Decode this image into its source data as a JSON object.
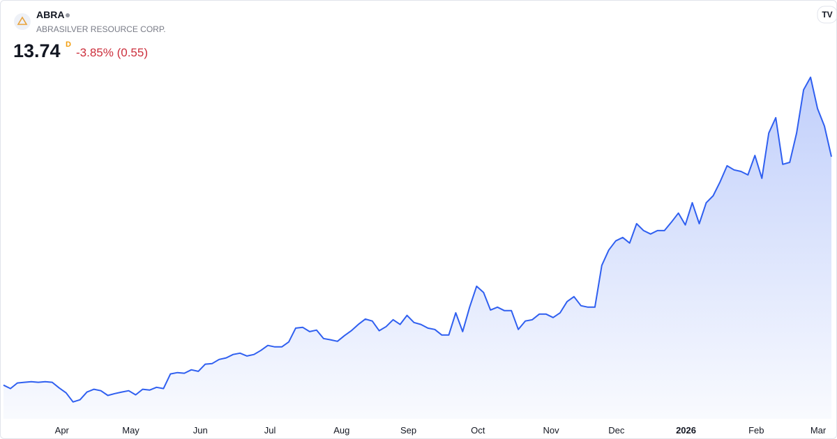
{
  "header": {
    "ticker": "ABRA",
    "company": "ABRASILVER RESOURCE CORP.",
    "price": "13.74",
    "interval": "D",
    "change": "-3.85% (0.55)"
  },
  "chart_data": {
    "type": "area",
    "color": "#2f5ff0",
    "values": [
      3.16,
      3.0,
      3.26,
      3.29,
      3.32,
      3.29,
      3.32,
      3.29,
      3.03,
      2.8,
      2.38,
      2.48,
      2.84,
      2.97,
      2.9,
      2.68,
      2.77,
      2.84,
      2.9,
      2.71,
      2.97,
      2.93,
      3.06,
      3.0,
      3.68,
      3.74,
      3.71,
      3.87,
      3.8,
      4.13,
      4.16,
      4.35,
      4.42,
      4.58,
      4.64,
      4.51,
      4.58,
      4.77,
      5.0,
      4.93,
      4.93,
      5.16,
      5.8,
      5.84,
      5.64,
      5.71,
      5.32,
      5.26,
      5.19,
      5.45,
      5.68,
      5.97,
      6.22,
      6.13,
      5.68,
      5.87,
      6.19,
      5.97,
      6.39,
      6.06,
      5.97,
      5.8,
      5.74,
      5.48,
      5.48,
      6.51,
      5.64,
      6.77,
      7.74,
      7.45,
      6.64,
      6.77,
      6.61,
      6.61,
      5.74,
      6.13,
      6.19,
      6.45,
      6.45,
      6.29,
      6.51,
      7.03,
      7.26,
      6.84,
      6.77,
      6.77,
      8.71,
      9.42,
      9.84,
      10.0,
      9.74,
      10.64,
      10.32,
      10.16,
      10.32,
      10.32,
      10.71,
      11.13,
      10.58,
      11.61,
      10.64,
      11.61,
      11.93,
      12.58,
      13.32,
      13.13,
      13.06,
      12.9,
      13.8,
      12.74,
      14.84,
      15.55,
      13.39,
      13.48,
      14.84,
      16.84,
      17.42,
      15.97,
      15.16,
      13.74
    ],
    "ylim": [
      1.6,
      19.0
    ],
    "xticks": [
      {
        "value": 8.4,
        "label": "Apr"
      },
      {
        "value": 18.3,
        "label": "May"
      },
      {
        "value": 28.3,
        "label": "Jun"
      },
      {
        "value": 38.3,
        "label": "Jul"
      },
      {
        "value": 48.6,
        "label": "Aug"
      },
      {
        "value": 58.2,
        "label": "Sep"
      },
      {
        "value": 68.2,
        "label": "Oct"
      },
      {
        "value": 78.7,
        "label": "Nov"
      },
      {
        "value": 88.1,
        "label": "Dec"
      },
      {
        "value": 98.1,
        "label": "2026"
      },
      {
        "value": 108.2,
        "label": "Feb"
      },
      {
        "value": 117.1,
        "label": "Mar"
      }
    ]
  }
}
